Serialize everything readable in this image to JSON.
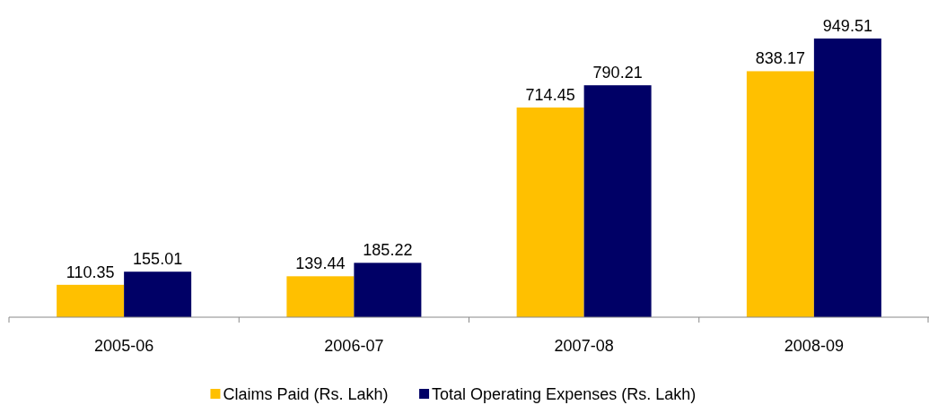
{
  "chart_data": {
    "type": "bar",
    "categories": [
      "2005-06",
      "2006-07",
      "2007-08",
      "2008-09"
    ],
    "series": [
      {
        "name": "Claims Paid (Rs. Lakh)",
        "color": "#ffc000",
        "values": [
          110.35,
          139.44,
          714.45,
          838.17
        ]
      },
      {
        "name": "Total Operating Expenses (Rs. Lakh)",
        "color": "#000066",
        "values": [
          155.01,
          185.22,
          790.21,
          949.51
        ]
      }
    ],
    "data_labels": true,
    "legend": "bottom"
  }
}
